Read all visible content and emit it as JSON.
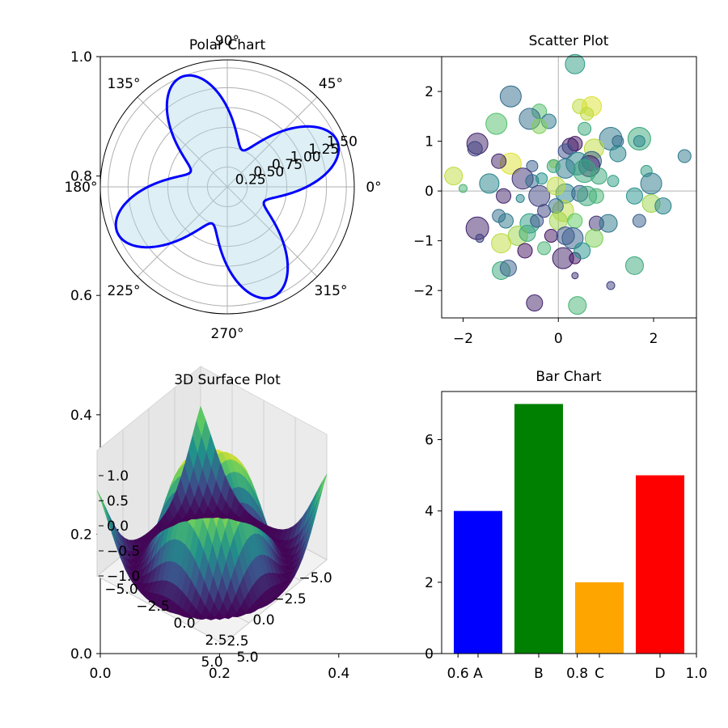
{
  "background_axes": {
    "x_ticks": [
      "0.0",
      "0.2",
      "0.4",
      "0.6",
      "0.8",
      "1.0"
    ],
    "y_ticks": [
      "0.0",
      "0.2",
      "0.4",
      "0.6",
      "0.8",
      "1.0"
    ]
  },
  "chart_data": [
    {
      "type": "polar",
      "title": "Polar Chart",
      "formula": "r = 1 + 0.5*sin(4*theta)",
      "rmax": 1.6,
      "radial_ticks": [
        "0.25",
        "0.50",
        "0.75",
        "1.00",
        "1.25",
        "1.50"
      ],
      "angle_labels": [
        "0°",
        "45°",
        "90°",
        "135°",
        "180°",
        "225°",
        "270°",
        "315°"
      ],
      "line_color": "#0000ff",
      "fill_color": "#add8e6"
    },
    {
      "type": "scatter",
      "title": "Scatter Plot",
      "xlim": [
        -2.45,
        2.9
      ],
      "ylim": [
        -2.55,
        2.7
      ],
      "x_ticks": [
        "−2",
        "0",
        "2"
      ],
      "y_ticks": [
        "−2",
        "−1",
        "0",
        "1",
        "2"
      ],
      "reference_lines": {
        "x": 0,
        "y": 0
      },
      "point_alpha": 0.5,
      "points": [
        {
          "x": 0.35,
          "y": 2.55,
          "s": 12,
          "c": 0.55
        },
        {
          "x": -1.0,
          "y": 1.9,
          "s": 13,
          "c": 0.35
        },
        {
          "x": -0.4,
          "y": 1.6,
          "s": 9,
          "c": 0.7
        },
        {
          "x": -0.2,
          "y": 1.4,
          "s": 9,
          "c": 0.4
        },
        {
          "x": -0.6,
          "y": 1.45,
          "s": 13,
          "c": 0.35
        },
        {
          "x": -1.3,
          "y": 1.35,
          "s": 13,
          "c": 0.7
        },
        {
          "x": 0.45,
          "y": 1.7,
          "s": 9,
          "c": 0.9
        },
        {
          "x": 0.7,
          "y": 1.7,
          "s": 12,
          "c": 0.95
        },
        {
          "x": 0.6,
          "y": 1.55,
          "s": 8,
          "c": 0.9
        },
        {
          "x": -0.4,
          "y": 1.3,
          "s": 9,
          "c": 0.8
        },
        {
          "x": 0.55,
          "y": 1.25,
          "s": 8,
          "c": 0.6
        },
        {
          "x": 1.1,
          "y": 1.05,
          "s": 14,
          "c": 0.4
        },
        {
          "x": 1.7,
          "y": 1.05,
          "s": 14,
          "c": 0.6
        },
        {
          "x": 1.7,
          "y": 1.0,
          "s": 7,
          "c": 0.45
        },
        {
          "x": 1.25,
          "y": 1.0,
          "s": 7,
          "c": 0.35
        },
        {
          "x": -1.7,
          "y": 0.95,
          "s": 13,
          "c": 0.1
        },
        {
          "x": -1.75,
          "y": 0.85,
          "s": 9,
          "c": 0.2
        },
        {
          "x": 0.25,
          "y": 0.9,
          "s": 10,
          "c": 0.1
        },
        {
          "x": 0.35,
          "y": 0.95,
          "s": 9,
          "c": 0.05
        },
        {
          "x": 0.75,
          "y": 0.85,
          "s": 12,
          "c": 0.9
        },
        {
          "x": 0.15,
          "y": 0.8,
          "s": 9,
          "c": 0.25
        },
        {
          "x": 1.25,
          "y": 0.75,
          "s": 10,
          "c": 0.45
        },
        {
          "x": 0.7,
          "y": 0.6,
          "s": 12,
          "c": 0.3
        },
        {
          "x": 0.65,
          "y": 0.5,
          "s": 13,
          "c": 0.1
        },
        {
          "x": 0.4,
          "y": 0.55,
          "s": 14,
          "c": 0.45
        },
        {
          "x": 2.65,
          "y": 0.7,
          "s": 8,
          "c": 0.4
        },
        {
          "x": -1.0,
          "y": 0.55,
          "s": 13,
          "c": 0.95
        },
        {
          "x": -1.25,
          "y": 0.6,
          "s": 9,
          "c": 0.1
        },
        {
          "x": -0.55,
          "y": 0.5,
          "s": 7,
          "c": 0.3
        },
        {
          "x": -0.1,
          "y": 0.55,
          "s": 5,
          "c": 0.9
        },
        {
          "x": 0.15,
          "y": 0.45,
          "s": 12,
          "c": 0.4
        },
        {
          "x": 0.55,
          "y": 0.4,
          "s": 14,
          "c": 0.6
        },
        {
          "x": 1.85,
          "y": 0.4,
          "s": 7,
          "c": 0.55
        },
        {
          "x": -2.2,
          "y": 0.3,
          "s": 11,
          "c": 0.9
        },
        {
          "x": -0.1,
          "y": 0.5,
          "s": 8,
          "c": 0.6
        },
        {
          "x": -0.75,
          "y": 0.25,
          "s": 13,
          "c": 0.15
        },
        {
          "x": -0.55,
          "y": 0.2,
          "s": 8,
          "c": 0.35
        },
        {
          "x": -0.35,
          "y": 0.25,
          "s": 7,
          "c": 0.5
        },
        {
          "x": -1.45,
          "y": 0.15,
          "s": 12,
          "c": 0.45
        },
        {
          "x": -2.0,
          "y": 0.05,
          "s": 5,
          "c": 0.65
        },
        {
          "x": 0.85,
          "y": 0.3,
          "s": 10,
          "c": 0.6
        },
        {
          "x": 1.15,
          "y": 0.2,
          "s": 7,
          "c": 0.55
        },
        {
          "x": 1.95,
          "y": 0.15,
          "s": 13,
          "c": 0.4
        },
        {
          "x": -1.15,
          "y": -0.1,
          "s": 9,
          "c": 0.1
        },
        {
          "x": -0.4,
          "y": -0.1,
          "s": 13,
          "c": 0.2
        },
        {
          "x": 0.15,
          "y": -0.05,
          "s": 12,
          "c": 0.45
        },
        {
          "x": 0.45,
          "y": -0.05,
          "s": 10,
          "c": 0.3
        },
        {
          "x": 0.6,
          "y": -0.1,
          "s": 12,
          "c": 0.6
        },
        {
          "x": 0.8,
          "y": -0.1,
          "s": 9,
          "c": 0.65
        },
        {
          "x": 1.6,
          "y": -0.1,
          "s": 10,
          "c": 0.5
        },
        {
          "x": 1.95,
          "y": -0.25,
          "s": 11,
          "c": 0.85
        },
        {
          "x": 2.2,
          "y": -0.3,
          "s": 10,
          "c": 0.45
        },
        {
          "x": -0.8,
          "y": -0.15,
          "s": 5,
          "c": 0.45
        },
        {
          "x": -0.05,
          "y": 0.1,
          "s": 11,
          "c": 0.9
        },
        {
          "x": -0.3,
          "y": -0.4,
          "s": 8,
          "c": 0.2
        },
        {
          "x": 0.1,
          "y": -0.4,
          "s": 13,
          "c": 0.9
        },
        {
          "x": -0.05,
          "y": -0.3,
          "s": 9,
          "c": 0.35
        },
        {
          "x": 0.8,
          "y": -0.65,
          "s": 9,
          "c": 0.15
        },
        {
          "x": 1.05,
          "y": -0.65,
          "s": 11,
          "c": 0.4
        },
        {
          "x": 1.7,
          "y": -0.6,
          "s": 8,
          "c": 0.3
        },
        {
          "x": -1.25,
          "y": -0.5,
          "s": 8,
          "c": 0.35
        },
        {
          "x": -1.1,
          "y": -0.6,
          "s": 9,
          "c": 0.4
        },
        {
          "x": -0.6,
          "y": -0.65,
          "s": 12,
          "c": 0.55
        },
        {
          "x": -0.45,
          "y": -0.6,
          "s": 8,
          "c": 0.25
        },
        {
          "x": 0.0,
          "y": -0.6,
          "s": 11,
          "c": 0.85
        },
        {
          "x": 0.35,
          "y": -0.6,
          "s": 9,
          "c": 0.75
        },
        {
          "x": -1.7,
          "y": -0.75,
          "s": 14,
          "c": 0.1
        },
        {
          "x": -1.65,
          "y": -0.95,
          "s": 5,
          "c": 0.2
        },
        {
          "x": -0.85,
          "y": -0.9,
          "s": 12,
          "c": 0.85
        },
        {
          "x": -0.65,
          "y": -0.85,
          "s": 10,
          "c": 0.6
        },
        {
          "x": -0.15,
          "y": -0.9,
          "s": 8,
          "c": 0.05
        },
        {
          "x": 0.15,
          "y": -0.9,
          "s": 11,
          "c": 0.25
        },
        {
          "x": 0.3,
          "y": -0.95,
          "s": 13,
          "c": 0.3
        },
        {
          "x": 0.75,
          "y": -0.95,
          "s": 11,
          "c": 0.8
        },
        {
          "x": -1.2,
          "y": -1.05,
          "s": 12,
          "c": 0.9
        },
        {
          "x": -0.7,
          "y": -1.2,
          "s": 9,
          "c": 0.05
        },
        {
          "x": 0.1,
          "y": -1.35,
          "s": 13,
          "c": 0.1
        },
        {
          "x": 0.35,
          "y": -1.35,
          "s": 7,
          "c": 0.05
        },
        {
          "x": 0.5,
          "y": -1.2,
          "s": 10,
          "c": 0.5
        },
        {
          "x": -0.3,
          "y": -1.15,
          "s": 8,
          "c": 0.65
        },
        {
          "x": -1.2,
          "y": -1.6,
          "s": 11,
          "c": 0.6
        },
        {
          "x": -1.05,
          "y": -1.55,
          "s": 10,
          "c": 0.3
        },
        {
          "x": 0.35,
          "y": -1.7,
          "s": 4,
          "c": 0.15
        },
        {
          "x": 1.1,
          "y": -1.9,
          "s": 5,
          "c": 0.2
        },
        {
          "x": 1.6,
          "y": -1.5,
          "s": 11,
          "c": 0.6
        },
        {
          "x": -0.5,
          "y": -2.25,
          "s": 10,
          "c": 0.1
        },
        {
          "x": 0.4,
          "y": -2.3,
          "s": 11,
          "c": 0.65
        }
      ]
    },
    {
      "type": "surface",
      "title": "3D Surface Plot",
      "formula": "z = sin(sqrt(x^2 + y^2))",
      "x_ticks": [
        "−5.0",
        "−2.5",
        "0.0",
        "2.5",
        "5.0"
      ],
      "y_ticks": [
        "−5.0",
        "−2.5",
        "0.0",
        "2.5",
        "5.0"
      ],
      "z_ticks": [
        "−1.0",
        "−0.5",
        "0.0",
        "0.5",
        "1.0"
      ],
      "colormap": "viridis",
      "range": [
        -5,
        5
      ]
    },
    {
      "type": "bar",
      "title": "Bar Chart",
      "categories": [
        "A",
        "B",
        "C",
        "D"
      ],
      "values": [
        4,
        7,
        2,
        5
      ],
      "colors": [
        "#0000ff",
        "#008000",
        "#ffa500",
        "#ff0000"
      ],
      "ylim": [
        0,
        7.35
      ],
      "y_ticks": [
        "0",
        "2",
        "4",
        "6"
      ]
    }
  ]
}
